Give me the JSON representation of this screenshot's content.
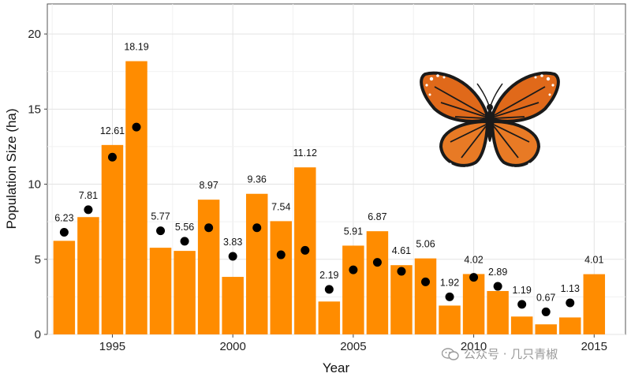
{
  "chart_data": {
    "type": "bar",
    "xlabel": "Year",
    "ylabel": "Population Size (ha)",
    "xlim": [
      1992.3,
      2016.3
    ],
    "ylim": [
      0,
      22
    ],
    "x_ticks": [
      1995,
      2000,
      2005,
      2010,
      2015
    ],
    "y_ticks": [
      0,
      5,
      10,
      15,
      20
    ],
    "grid": true,
    "bar_color": "#ff8c00",
    "point_color": "#000000",
    "series": [
      {
        "type": "bar",
        "x": [
          1993,
          1994,
          1995,
          1996,
          1997,
          1998,
          1999,
          2000,
          2001,
          2002,
          2003,
          2004,
          2005,
          2006,
          2007,
          2008,
          2009,
          2010,
          2011,
          2012,
          2013,
          2014,
          2015
        ],
        "values": [
          6.23,
          7.81,
          12.61,
          18.19,
          5.77,
          5.56,
          8.97,
          3.83,
          9.36,
          7.54,
          11.12,
          2.19,
          5.91,
          6.87,
          4.61,
          5.06,
          1.92,
          4.02,
          2.89,
          1.19,
          0.67,
          1.13,
          4.01
        ],
        "labels": [
          "6.23",
          "7.81",
          "12.61",
          "18.19",
          "5.77",
          "5.56",
          "8.97",
          "3.83",
          "9.36",
          "7.54",
          "11.12",
          "2.19",
          "5.91",
          "6.87",
          "4.61",
          "5.06",
          "1.92",
          "4.02",
          "2.89",
          "1.19",
          "0.67",
          "1.13",
          "4.01"
        ]
      },
      {
        "type": "scatter",
        "x": [
          1993,
          1994,
          1995,
          1996,
          1997,
          1998,
          1999,
          2000,
          2001,
          2002,
          2003,
          2004,
          2005,
          2006,
          2007,
          2008,
          2009,
          2010,
          2011,
          2012,
          2013,
          2014
        ],
        "values": [
          6.8,
          8.3,
          11.8,
          13.8,
          6.9,
          6.2,
          7.1,
          5.2,
          7.1,
          5.3,
          5.6,
          3.0,
          4.3,
          4.8,
          4.2,
          3.5,
          2.5,
          3.8,
          3.2,
          2.0,
          1.5,
          2.1
        ]
      }
    ],
    "image": "monarch-butterfly-icon"
  },
  "watermark": {
    "text": "公众号 · 几只青椒"
  }
}
